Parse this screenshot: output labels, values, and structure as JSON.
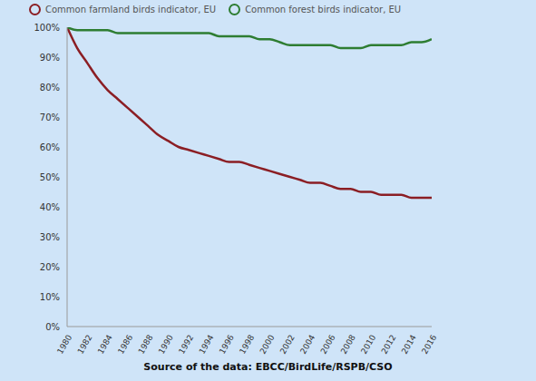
{
  "chart_data": {
    "type": "line",
    "caption": "Source of the data: EBCC/BirdLife/RSPB/CSO",
    "x": [
      1980,
      1981,
      1982,
      1983,
      1984,
      1985,
      1986,
      1987,
      1988,
      1989,
      1990,
      1991,
      1992,
      1993,
      1994,
      1995,
      1996,
      1997,
      1998,
      1999,
      2000,
      2001,
      2002,
      2003,
      2004,
      2005,
      2006,
      2007,
      2008,
      2009,
      2010,
      2011,
      2012,
      2013,
      2014,
      2015,
      2016
    ],
    "series": [
      {
        "name": "Common farmland birds indicator, EU",
        "color": "#8b1e24",
        "values": [
          100,
          93,
          88,
          83,
          79,
          76,
          73,
          70,
          67,
          64,
          62,
          60,
          59,
          58,
          57,
          56,
          55,
          55,
          54,
          53,
          52,
          51,
          50,
          49,
          48,
          48,
          47,
          46,
          46,
          45,
          45,
          44,
          44,
          44,
          43,
          43,
          43
        ]
      },
      {
        "name": "Common forest birds indicator, EU",
        "color": "#2e7d32",
        "values": [
          100,
          99,
          99,
          99,
          99,
          98,
          98,
          98,
          98,
          98,
          98,
          98,
          98,
          98,
          98,
          97,
          97,
          97,
          97,
          96,
          96,
          95,
          94,
          94,
          94,
          94,
          94,
          93,
          93,
          93,
          94,
          94,
          94,
          94,
          95,
          95,
          96
        ]
      }
    ],
    "xlim": [
      1980,
      2016
    ],
    "xticks": [
      1980,
      1982,
      1984,
      1986,
      1988,
      1990,
      1992,
      1994,
      1996,
      1998,
      2000,
      2002,
      2004,
      2006,
      2008,
      2010,
      2012,
      2014,
      2016
    ],
    "ylim": [
      0,
      100
    ],
    "yticks": [
      {
        "value": 0,
        "label": "0%"
      },
      {
        "value": 10,
        "label": "10%"
      },
      {
        "value": 20,
        "label": "20%"
      },
      {
        "value": 30,
        "label": "30%"
      },
      {
        "value": 40,
        "label": "40%"
      },
      {
        "value": 50,
        "label": "50%"
      },
      {
        "value": 60,
        "label": "60%"
      },
      {
        "value": 70,
        "label": "70%"
      },
      {
        "value": 80,
        "label": "80%"
      },
      {
        "value": 90,
        "label": "90%"
      },
      {
        "value": 100,
        "label": "100%"
      }
    ],
    "grid": false,
    "legend": "top",
    "marker": "none"
  }
}
